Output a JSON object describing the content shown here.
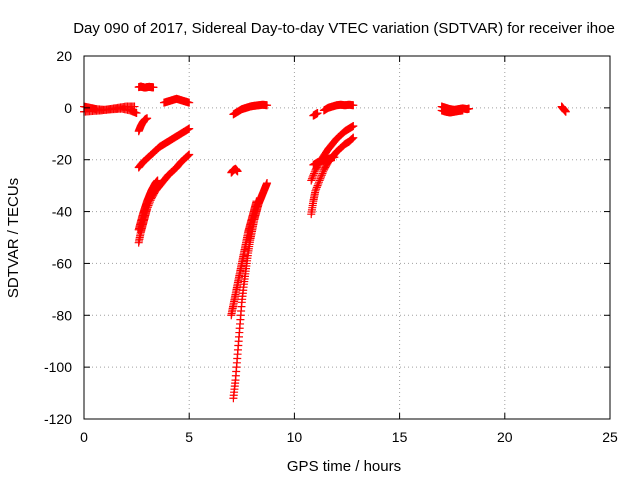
{
  "chart_data": {
    "type": "scatter",
    "title": "Day 090 of 2017, Sidereal Day-to-day VTEC variation (SDTVAR) for receiver ihoe",
    "xlabel": "GPS time / hours",
    "ylabel": "SDTVAR / TECUs",
    "xlim": [
      0,
      25
    ],
    "ylim": [
      -120,
      20
    ],
    "xticks": [
      0,
      5,
      10,
      15,
      20,
      25
    ],
    "yticks": [
      20,
      0,
      -20,
      -40,
      -60,
      -80,
      -100,
      -120
    ],
    "grid": true,
    "legend": "none",
    "marker": "plus",
    "color": "#ff0000",
    "segments": [
      {
        "x": [
          0.0,
          0.3,
          0.6,
          1.0,
          1.4,
          1.8,
          2.2,
          2.5
        ],
        "y": [
          0.5,
          0.0,
          -0.5,
          -0.8,
          -0.5,
          -0.3,
          -1.0,
          -2.0
        ]
      },
      {
        "x": [
          0.0,
          0.4,
          0.8,
          1.2,
          1.6,
          2.0,
          2.4
        ],
        "y": [
          -1.5,
          -1.2,
          -1.0,
          -0.5,
          0.0,
          0.5,
          0.5
        ]
      },
      {
        "x": [
          2.6,
          2.7,
          2.8,
          2.9,
          3.0,
          3.1,
          3.2,
          3.3
        ],
        "y": [
          8.0,
          8.2,
          8.0,
          7.8,
          8.0,
          8.1,
          8.0,
          7.9
        ]
      },
      {
        "x": [
          2.6,
          2.7,
          2.8,
          2.9,
          3.0
        ],
        "y": [
          -9.0,
          -7.0,
          -5.5,
          -4.5,
          -4.0
        ]
      },
      {
        "x": [
          3.8,
          4.0,
          4.2,
          4.4,
          4.6,
          4.8,
          5.0
        ],
        "y": [
          2.0,
          2.5,
          3.0,
          3.5,
          3.0,
          2.5,
          2.0
        ]
      },
      {
        "x": [
          2.6,
          2.8,
          3.0,
          3.2,
          3.4,
          3.6,
          3.8,
          4.0,
          4.2,
          4.4,
          4.6,
          4.8,
          5.0
        ],
        "y": [
          -23.0,
          -21.0,
          -19.5,
          -18.0,
          -16.5,
          -15.0,
          -14.0,
          -13.0,
          -12.0,
          -11.0,
          -10.0,
          -9.0,
          -8.0
        ]
      },
      {
        "x": [
          2.6,
          2.7,
          2.8,
          2.9,
          3.0,
          3.2,
          3.4,
          3.6,
          3.8,
          4.0,
          4.2,
          4.4,
          4.6,
          4.8,
          5.0
        ],
        "y": [
          -52.0,
          -48.0,
          -45.0,
          -42.0,
          -39.0,
          -35.0,
          -32.0,
          -30.0,
          -28.0,
          -26.0,
          -24.5,
          -23.0,
          -21.0,
          -19.5,
          -18.0
        ]
      },
      {
        "x": [
          2.6,
          2.7,
          2.8,
          2.9,
          3.0,
          3.1,
          3.2,
          3.3,
          3.4,
          3.5
        ],
        "y": [
          -47.0,
          -44.0,
          -41.0,
          -38.5,
          -36.0,
          -34.0,
          -32.0,
          -30.5,
          -29.0,
          -28.0
        ]
      },
      {
        "x": [
          7.0,
          7.1,
          7.2,
          7.3
        ],
        "y": [
          -25.0,
          -24.0,
          -23.5,
          -24.5
        ]
      },
      {
        "x": [
          7.1,
          7.2,
          7.3,
          7.4,
          7.5,
          7.6,
          7.7,
          7.8,
          7.9,
          8.0,
          8.1,
          8.2,
          8.3,
          8.4,
          8.5,
          8.6,
          8.7
        ],
        "y": [
          -112.0,
          -105.0,
          -95.0,
          -85.0,
          -75.0,
          -68.0,
          -62.0,
          -56.0,
          -51.0,
          -47.0,
          -43.0,
          -40.0,
          -37.0,
          -35.0,
          -33.0,
          -31.0,
          -29.0
        ]
      },
      {
        "x": [
          7.0,
          7.1,
          7.2,
          7.3,
          7.4,
          7.5,
          7.6,
          7.7,
          7.8,
          7.9,
          8.0,
          8.1,
          8.2
        ],
        "y": [
          -80.0,
          -76.0,
          -72.0,
          -68.0,
          -64.0,
          -60.0,
          -56.0,
          -52.0,
          -48.0,
          -45.0,
          -42.0,
          -39.0,
          -36.0
        ]
      },
      {
        "x": [
          7.1,
          7.3,
          7.5,
          7.7,
          7.9,
          8.1,
          8.3,
          8.5,
          8.7
        ],
        "y": [
          -2.5,
          -1.5,
          -0.5,
          0.0,
          0.5,
          0.8,
          1.0,
          1.2,
          1.0
        ]
      },
      {
        "x": [
          10.9,
          11.0,
          11.1
        ],
        "y": [
          -3.0,
          -2.5,
          -2.0
        ]
      },
      {
        "x": [
          11.4,
          11.6,
          11.8,
          12.0,
          12.2,
          12.4,
          12.6,
          12.8
        ],
        "y": [
          -1.0,
          0.0,
          0.5,
          1.0,
          1.2,
          1.0,
          1.2,
          1.0
        ]
      },
      {
        "x": [
          10.8,
          10.9,
          11.0,
          11.2,
          11.4,
          11.6,
          11.8,
          12.0,
          12.2,
          12.4,
          12.6,
          12.8
        ],
        "y": [
          -41.0,
          -36.0,
          -32.0,
          -28.0,
          -24.0,
          -21.0,
          -19.0,
          -17.0,
          -15.5,
          -14.0,
          -13.0,
          -11.5
        ]
      },
      {
        "x": [
          10.8,
          11.0,
          11.2,
          11.4,
          11.6,
          11.8,
          12.0,
          12.2,
          12.4,
          12.6,
          12.8
        ],
        "y": [
          -28.0,
          -24.0,
          -21.0,
          -18.5,
          -16.0,
          -14.0,
          -12.0,
          -10.5,
          -9.0,
          -8.0,
          -7.0
        ]
      },
      {
        "x": [
          10.9,
          11.1,
          11.3,
          11.5,
          11.7,
          11.9
        ],
        "y": [
          -22.0,
          -21.0,
          -20.5,
          -20.0,
          -19.5,
          -19.0
        ]
      },
      {
        "x": [
          17.0,
          17.2,
          17.4,
          17.6,
          17.8,
          18.0,
          18.2,
          18.3
        ],
        "y": [
          0.5,
          0.0,
          -0.5,
          -0.8,
          -0.5,
          -0.2,
          -0.5,
          -0.3
        ]
      },
      {
        "x": [
          17.0,
          17.2,
          17.4,
          17.6,
          17.8,
          18.0
        ],
        "y": [
          -1.0,
          -1.5,
          -1.8,
          -1.5,
          -1.2,
          -1.0
        ]
      },
      {
        "x": [
          22.7,
          22.8,
          22.9
        ],
        "y": [
          0.5,
          -0.5,
          -1.5
        ]
      }
    ]
  }
}
